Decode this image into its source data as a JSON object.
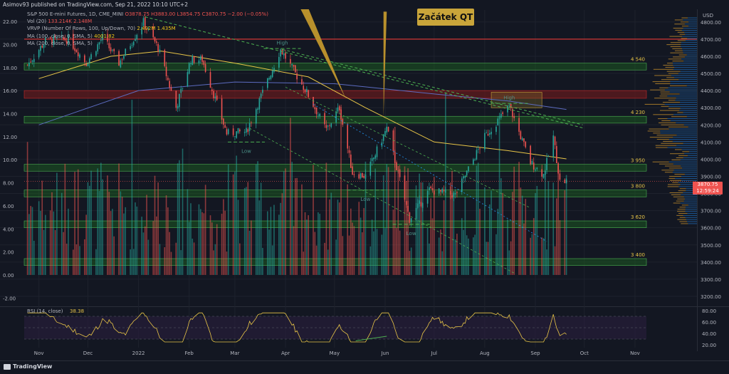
{
  "header": {
    "publish_line": "Asimov93 published on TradingView.com, Sep 21, 2022 10:10 UTC+2"
  },
  "legend": {
    "symbol": "S&P 500 E-mini Futures, 1D, CME_MINI",
    "ohlc": "O3878.75 H3883.00 L3854.75 C3870.75 −2.00 (−0.05%)",
    "vol_label": "Vol (20)",
    "vol_values": "133.214K 2.148M",
    "vrvp_label": "VRVP (Number Of Rows, 100, Up/Down, 70)",
    "vrvp_values": "2.402M 1.435M",
    "ma100_label": "MA (100, close, 0, SMA, 5)",
    "ma100_value": "4001.82",
    "ma200_label": "MA (200, close, 0, SMA, 5)"
  },
  "annotation": {
    "qt_label": "Začátek QT"
  },
  "colors": {
    "up": "#26a69a",
    "down": "#ef5350",
    "zone_fill": "#1b5e20",
    "zone_border": "#4caf50",
    "red_zone": "#5b1a1e",
    "ma100": "#e8c547",
    "ma200": "#5c6bc0",
    "resistance": "#e53935",
    "arrow": "#b8902c"
  },
  "left_axis_ticks": [
    "22.00",
    "20.00",
    "18.00",
    "16.00",
    "14.00",
    "12.00",
    "10.00",
    "8.00",
    "6.00",
    "4.00",
    "2.00",
    "0.00",
    "-2.00"
  ],
  "right_axis": {
    "unit": "USD",
    "ticks": [
      "4800.00",
      "4700.00",
      "4600.00",
      "4500.00",
      "4400.00",
      "4300.00",
      "4200.00",
      "4100.00",
      "4000.00",
      "3900.00",
      "3800.00",
      "3700.00",
      "3600.00",
      "3500.00",
      "3400.00",
      "3300.00",
      "3200.00"
    ],
    "rsi_ticks": [
      "80.00",
      "60.00",
      "40.00",
      "20.00"
    ],
    "last_price": "3870.75",
    "countdown": "12:59:24"
  },
  "x_axis_labels": [
    "Nov",
    "Dec",
    "2022",
    "Feb",
    "Mar",
    "Apr",
    "May",
    "Jun",
    "Jul",
    "Aug",
    "Sep",
    "Oct",
    "Nov"
  ],
  "zone_labels": [
    "4 540",
    "4 230",
    "3 950",
    "3 800",
    "3 620",
    "3 400"
  ],
  "swing_labels": [
    "High",
    "High",
    "Low",
    "Low",
    "Low"
  ],
  "rsi": {
    "label": "RSI (14, close)",
    "value": "38.38"
  },
  "footer": {
    "brand": "TradingView"
  },
  "chart_data": {
    "type": "line",
    "title": "S&P 500 E-mini Futures, 1D, CME_MINI",
    "x": [
      "Nov",
      "Dec",
      "2022",
      "Feb",
      "Mar",
      "Apr",
      "May",
      "Jun",
      "Jul",
      "Aug",
      "Sep",
      "Oct",
      "Nov"
    ],
    "series": [
      {
        "close_points": [
          [
            "2021-10-25",
            4550
          ],
          [
            "2021-11-05",
            4690
          ],
          [
            "2021-11-19",
            4700
          ],
          [
            "2021-11-30",
            4560
          ],
          [
            "2021-12-10",
            4710
          ],
          [
            "2021-12-20",
            4560
          ],
          [
            "2022-01-04",
            4800
          ],
          [
            "2022-01-13",
            4650
          ],
          [
            "2022-01-24",
            4300
          ],
          [
            "2022-02-02",
            4580
          ],
          [
            "2022-02-09",
            4580
          ],
          [
            "2022-02-24",
            4150
          ],
          [
            "2022-03-08",
            4160
          ],
          [
            "2022-03-29",
            4640
          ],
          [
            "2022-04-14",
            4390
          ],
          [
            "2022-04-26",
            4170
          ],
          [
            "2022-05-04",
            4300
          ],
          [
            "2022-05-12",
            3920
          ],
          [
            "2022-05-20",
            3900
          ],
          [
            "2022-06-02",
            4180
          ],
          [
            "2022-06-16",
            3650
          ],
          [
            "2022-06-28",
            3820
          ],
          [
            "2022-07-14",
            3790
          ],
          [
            "2022-08-01",
            4130
          ],
          [
            "2022-08-16",
            4310
          ],
          [
            "2022-08-29",
            3980
          ],
          [
            "2022-09-06",
            3910
          ],
          [
            "2022-09-12",
            4130
          ],
          [
            "2022-09-16",
            3870
          ],
          [
            "2022-09-20",
            3870.75
          ]
        ]
      },
      {
        "name": "MA (100, close, 0, SMA, 5)",
        "points": [
          [
            "2021-11-01",
            4470
          ],
          [
            "2021-12-15",
            4600
          ],
          [
            "2022-01-15",
            4630
          ],
          [
            "2022-03-01",
            4560
          ],
          [
            "2022-04-15",
            4480
          ],
          [
            "2022-05-20",
            4300
          ],
          [
            "2022-07-01",
            4100
          ],
          [
            "2022-08-15",
            4050
          ],
          [
            "2022-09-20",
            4001.82
          ]
        ]
      },
      {
        "name": "MA (200, close, 0, SMA, 5)",
        "points": [
          [
            "2021-11-01",
            4200
          ],
          [
            "2022-01-01",
            4400
          ],
          [
            "2022-03-01",
            4450
          ],
          [
            "2022-05-01",
            4440
          ],
          [
            "2022-07-01",
            4380
          ],
          [
            "2022-08-15",
            4340
          ],
          [
            "2022-09-20",
            4290
          ]
        ]
      }
    ],
    "support_resistance_levels": [
      4540,
      4230,
      3950,
      3800,
      3620,
      3400
    ],
    "resistance_line": 4700,
    "y_range": [
      3150,
      4870
    ],
    "volume_axis_range": [
      -2.6,
      23
    ],
    "rsi_last": 38.38,
    "grid": true
  }
}
